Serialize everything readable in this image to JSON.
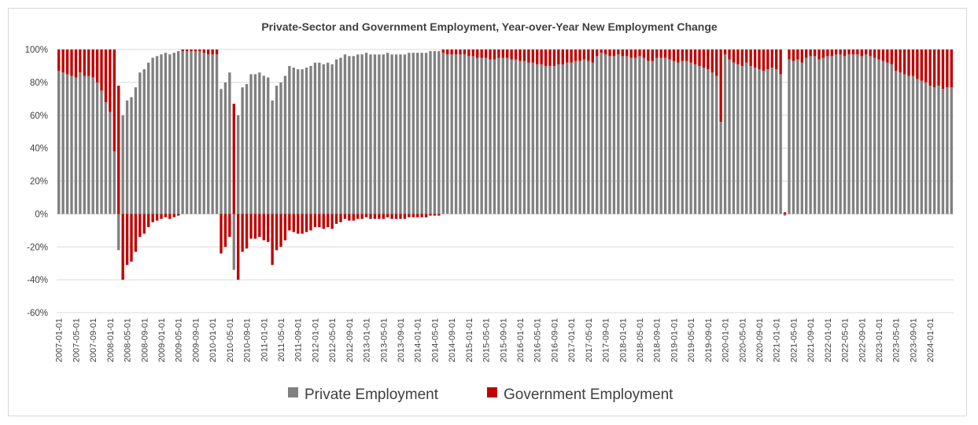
{
  "chart_data": {
    "type": "bar",
    "stacked": true,
    "title": "Private-Sector and Government Employment, Year-over-Year New Employment Change",
    "xlabel": "",
    "ylabel": "",
    "ylim": [
      -0.6,
      1.0
    ],
    "y_ticks": [
      1.0,
      0.8,
      0.6,
      0.4,
      0.2,
      0.0,
      -0.2,
      -0.4,
      -0.6
    ],
    "y_tick_labels": [
      "100%",
      "80%",
      "60%",
      "40%",
      "20%",
      "0%",
      "-20%",
      "-40%",
      "-60%"
    ],
    "grid": true,
    "legend_position": "bottom",
    "x_tick_labels": [
      "2007-01-01",
      "2007-05-01",
      "2007-09-01",
      "2008-01-01",
      "2008-05-01",
      "2008-09-01",
      "2009-01-01",
      "2009-05-01",
      "2009-09-01",
      "2010-01-01",
      "2010-05-01",
      "2010-09-01",
      "2011-01-01",
      "2011-05-01",
      "2011-09-01",
      "2012-01-01",
      "2012-05-01",
      "2012-09-01",
      "2013-01-01",
      "2013-05-01",
      "2013-09-01",
      "2014-01-01",
      "2014-05-01",
      "2014-09-01",
      "2015-01-01",
      "2015-05-01",
      "2015-09-01",
      "2016-01-01",
      "2016-05-01",
      "2016-09-01",
      "2017-01-01",
      "2017-05-01",
      "2017-09-01",
      "2018-01-01",
      "2018-05-01",
      "2018-09-01",
      "2019-01-01",
      "2019-05-01",
      "2019-09-01",
      "2020-01-01",
      "2020-05-01",
      "2020-09-01",
      "2021-01-01",
      "2021-05-01",
      "2021-09-01",
      "2022-01-01",
      "2022-05-01",
      "2022-09-01",
      "2023-01-01",
      "2023-05-01",
      "2023-09-01",
      "2024-01-01"
    ],
    "start_month": "2007-01",
    "series": [
      {
        "name": "Private Employment",
        "color": "#808080",
        "values": [
          0.87,
          0.86,
          0.85,
          0.84,
          0.83,
          0.86,
          0.84,
          0.84,
          0.83,
          0.8,
          0.75,
          0.68,
          0.62,
          0.38,
          -0.22,
          0.6,
          0.69,
          0.71,
          0.77,
          0.86,
          0.88,
          0.92,
          0.95,
          0.96,
          0.97,
          0.98,
          0.97,
          0.98,
          0.99,
          0.99,
          0.99,
          0.99,
          0.99,
          0.99,
          0.98,
          0.97,
          0.97,
          0.97,
          0.76,
          0.8,
          0.86,
          -0.34,
          0.6,
          0.77,
          0.79,
          0.85,
          0.85,
          0.86,
          0.84,
          0.83,
          0.69,
          0.78,
          0.8,
          0.84,
          0.9,
          0.89,
          0.88,
          0.88,
          0.89,
          0.9,
          0.92,
          0.92,
          0.91,
          0.92,
          0.91,
          0.94,
          0.95,
          0.97,
          0.96,
          0.96,
          0.97,
          0.97,
          0.98,
          0.97,
          0.97,
          0.97,
          0.97,
          0.98,
          0.97,
          0.97,
          0.97,
          0.97,
          0.98,
          0.98,
          0.98,
          0.98,
          0.98,
          0.99,
          0.99,
          0.99,
          0.98,
          0.97,
          0.97,
          0.97,
          0.97,
          0.97,
          0.96,
          0.96,
          0.95,
          0.95,
          0.95,
          0.94,
          0.94,
          0.95,
          0.95,
          0.95,
          0.94,
          0.94,
          0.93,
          0.93,
          0.92,
          0.92,
          0.91,
          0.91,
          0.9,
          0.9,
          0.9,
          0.91,
          0.91,
          0.92,
          0.92,
          0.93,
          0.93,
          0.94,
          0.93,
          0.92,
          0.96,
          0.98,
          0.97,
          0.96,
          0.96,
          0.97,
          0.96,
          0.96,
          0.95,
          0.95,
          0.96,
          0.95,
          0.93,
          0.93,
          0.95,
          0.95,
          0.95,
          0.94,
          0.93,
          0.92,
          0.93,
          0.93,
          0.92,
          0.91,
          0.9,
          0.89,
          0.88,
          0.86,
          0.84,
          0.56,
          0.97,
          0.94,
          0.92,
          0.91,
          0.9,
          0.92,
          0.9,
          0.89,
          0.88,
          0.87,
          0.88,
          0.89,
          0.88,
          0.85,
          -0.01,
          0.94,
          0.93,
          0.94,
          0.92,
          0.95,
          0.96,
          0.96,
          0.94,
          0.95,
          0.96,
          0.96,
          0.97,
          0.97,
          0.96,
          0.97,
          0.97,
          0.97,
          0.96,
          0.97,
          0.96,
          0.95,
          0.94,
          0.93,
          0.92,
          0.91,
          0.87,
          0.86,
          0.85,
          0.84,
          0.84,
          0.82,
          0.81,
          0.8,
          0.78,
          0.77,
          0.78,
          0.76,
          0.77,
          0.77
        ]
      },
      {
        "name": "Government Employment",
        "color": "#c00000",
        "values": [
          0.13,
          0.14,
          0.15,
          0.16,
          0.17,
          0.14,
          0.16,
          0.16,
          0.17,
          0.2,
          0.25,
          0.32,
          0.38,
          0.62,
          0.78,
          -0.4,
          -0.31,
          -0.29,
          -0.23,
          -0.14,
          -0.12,
          -0.08,
          -0.05,
          -0.04,
          -0.03,
          -0.02,
          -0.03,
          -0.02,
          -0.01,
          0.01,
          0.01,
          0.01,
          0.01,
          0.01,
          0.02,
          0.03,
          0.03,
          0.03,
          -0.24,
          -0.2,
          -0.14,
          0.67,
          -0.4,
          -0.23,
          -0.21,
          -0.15,
          -0.15,
          -0.14,
          -0.16,
          -0.17,
          -0.31,
          -0.22,
          -0.2,
          -0.16,
          -0.1,
          -0.11,
          -0.12,
          -0.12,
          -0.11,
          -0.1,
          -0.08,
          -0.08,
          -0.09,
          -0.08,
          -0.09,
          -0.06,
          -0.05,
          -0.03,
          -0.04,
          -0.04,
          -0.03,
          -0.03,
          -0.02,
          -0.03,
          -0.03,
          -0.03,
          -0.03,
          -0.02,
          -0.03,
          -0.03,
          -0.03,
          -0.03,
          -0.02,
          -0.02,
          -0.02,
          -0.02,
          -0.02,
          -0.01,
          -0.01,
          -0.01,
          0.02,
          0.03,
          0.03,
          0.03,
          0.03,
          0.03,
          0.04,
          0.04,
          0.05,
          0.05,
          0.05,
          0.06,
          0.06,
          0.05,
          0.05,
          0.05,
          0.06,
          0.06,
          0.07,
          0.07,
          0.08,
          0.08,
          0.09,
          0.09,
          0.1,
          0.1,
          0.1,
          0.09,
          0.09,
          0.08,
          0.08,
          0.07,
          0.07,
          0.06,
          0.07,
          0.08,
          0.04,
          0.02,
          0.03,
          0.04,
          0.04,
          0.03,
          0.04,
          0.04,
          0.05,
          0.05,
          0.04,
          0.05,
          0.07,
          0.07,
          0.05,
          0.05,
          0.05,
          0.06,
          0.07,
          0.08,
          0.07,
          0.07,
          0.08,
          0.09,
          0.1,
          0.11,
          0.12,
          0.14,
          0.16,
          0.44,
          0.03,
          0.06,
          0.08,
          0.09,
          0.1,
          0.08,
          0.1,
          0.11,
          0.12,
          0.13,
          0.12,
          0.11,
          0.12,
          0.15,
          0.01,
          0.06,
          0.07,
          0.06,
          0.08,
          0.05,
          0.04,
          0.04,
          0.06,
          0.05,
          0.04,
          0.04,
          0.03,
          0.03,
          0.04,
          0.03,
          0.03,
          0.03,
          0.04,
          0.03,
          0.04,
          0.05,
          0.06,
          0.07,
          0.08,
          0.09,
          0.13,
          0.14,
          0.15,
          0.16,
          0.16,
          0.18,
          0.19,
          0.2,
          0.22,
          0.23,
          0.22,
          0.24,
          0.23,
          0.23
        ]
      }
    ]
  }
}
